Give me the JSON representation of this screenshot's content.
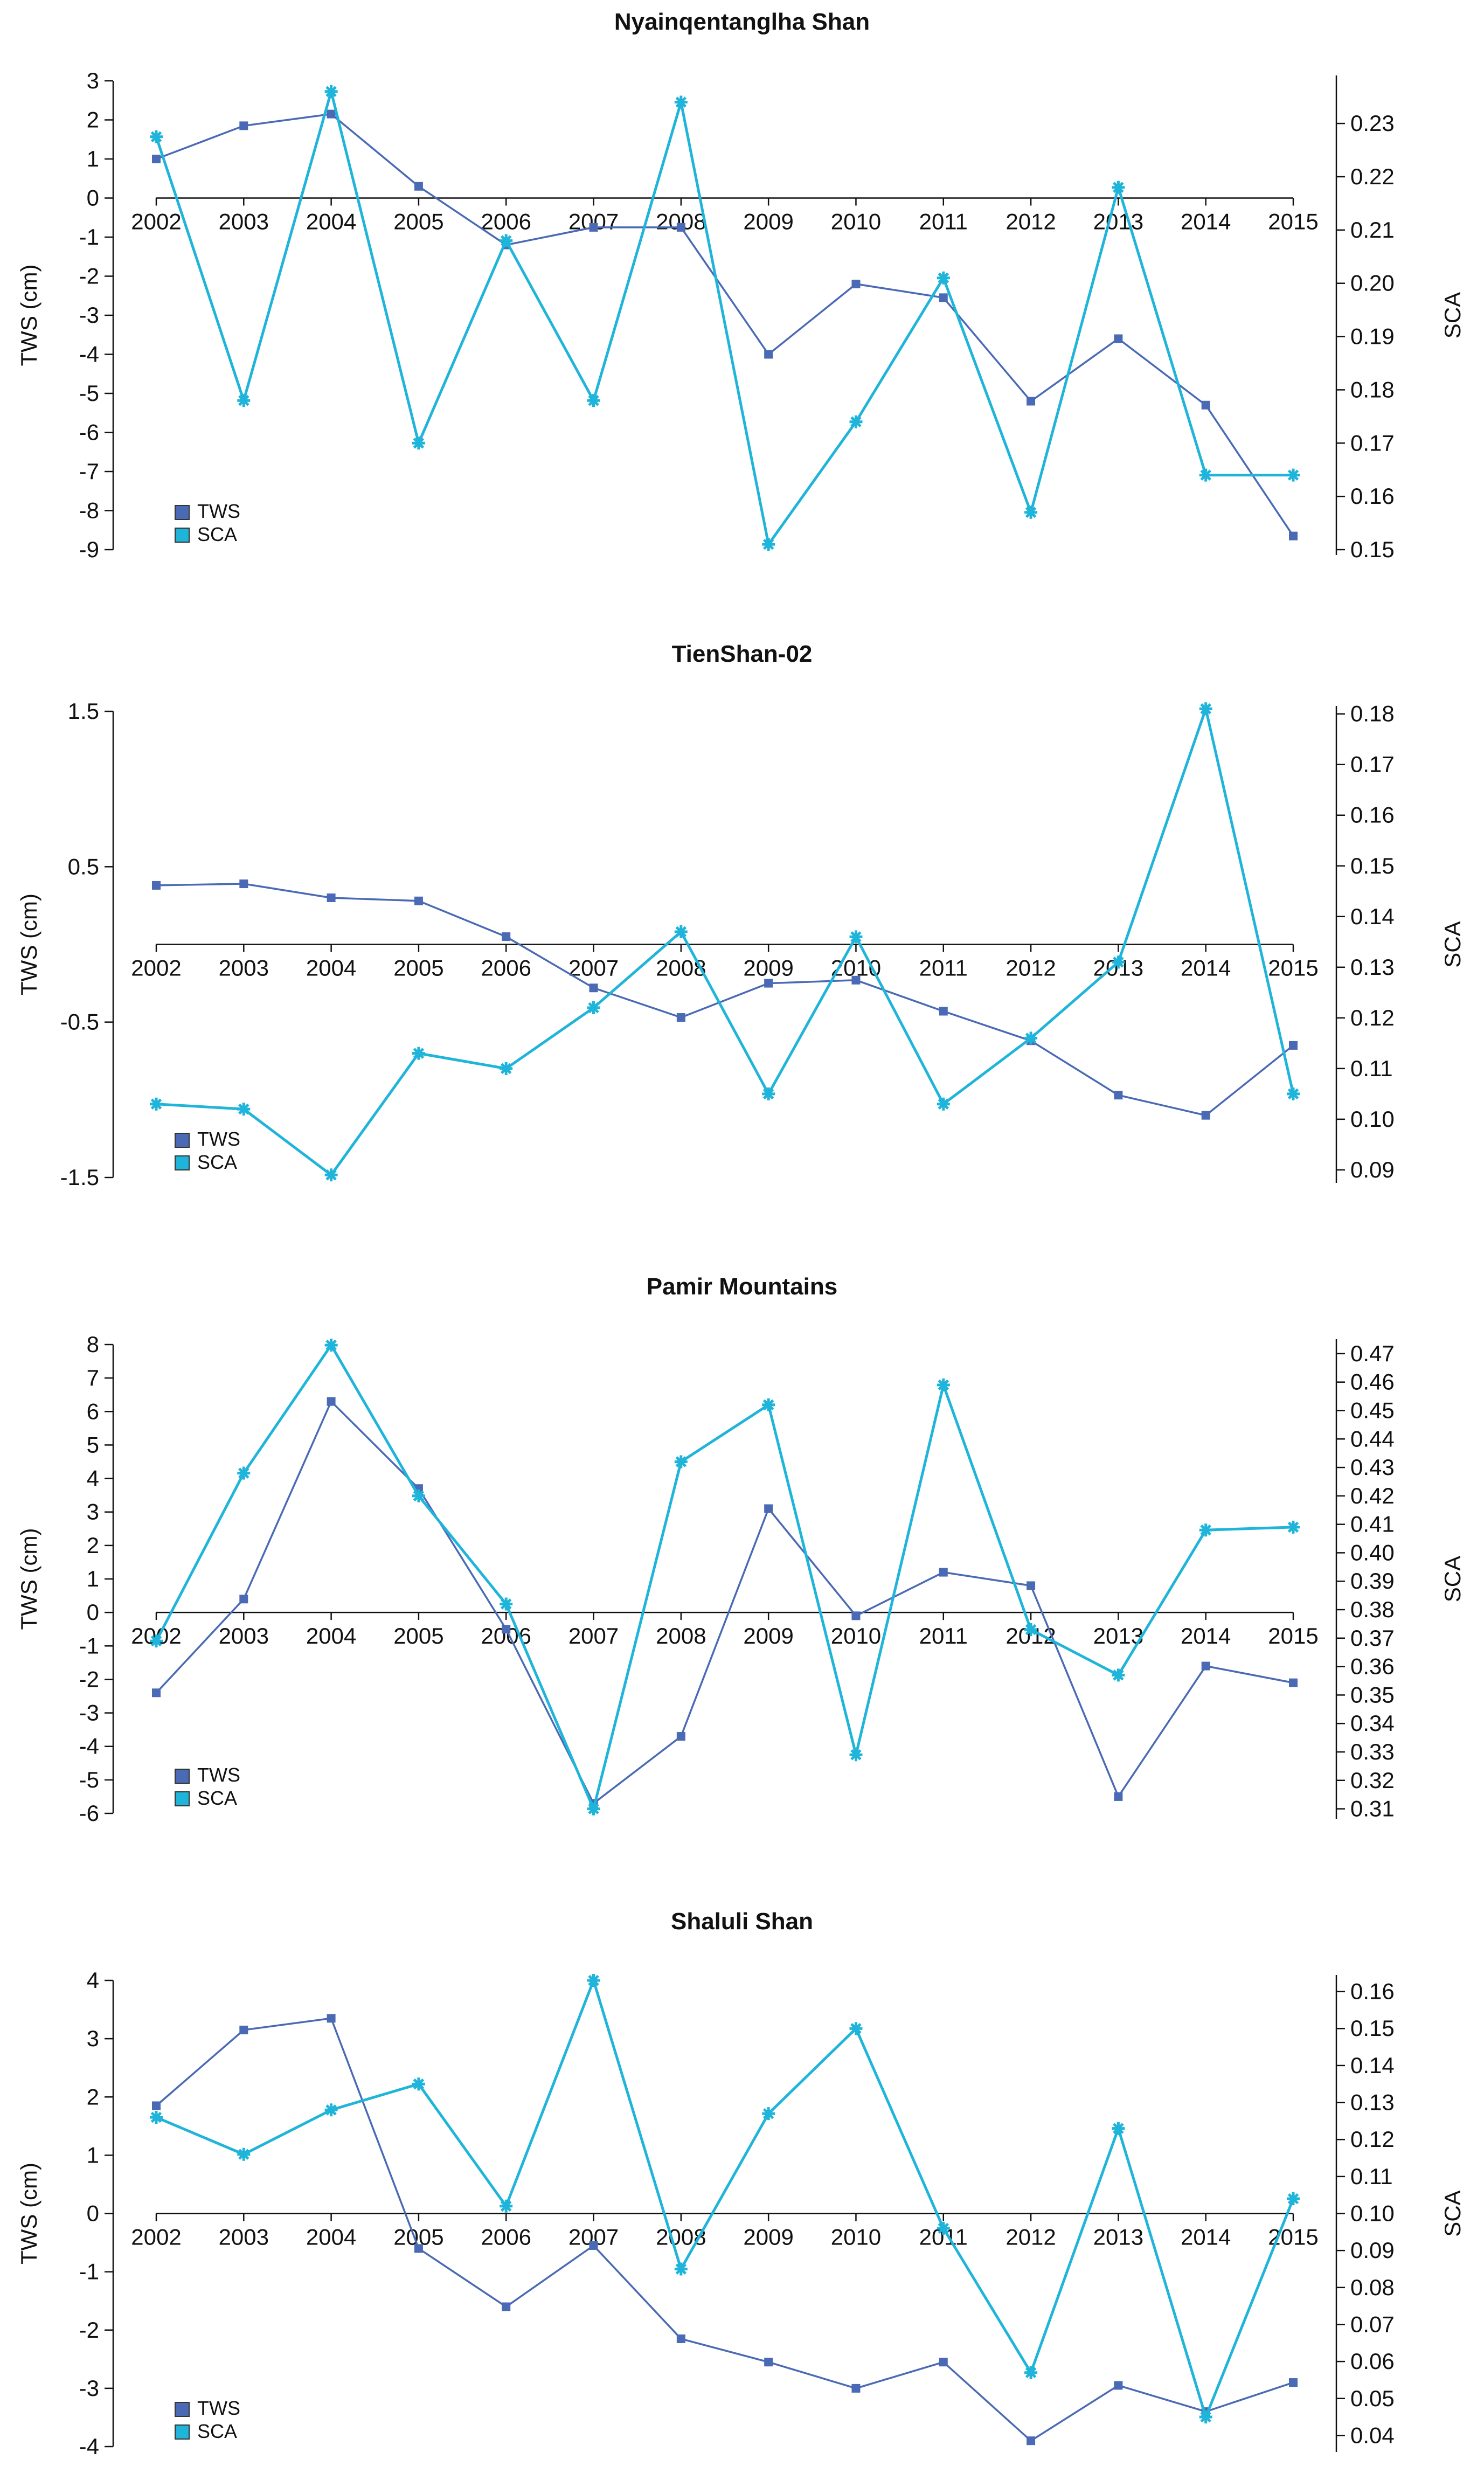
{
  "colors": {
    "tws": "#4a6ab5",
    "sca": "#1fb4d9",
    "axis": "#111111"
  },
  "legend": {
    "tws_label": "TWS",
    "sca_label": "SCA"
  },
  "chart_data": [
    {
      "type": "line",
      "title": "Nyainqentanglha Shan",
      "xlabel": "",
      "ylabel": "TWS (cm)",
      "y2label": "SCA",
      "categories": [
        "2002",
        "2003",
        "2004",
        "2005",
        "2006",
        "2007",
        "2008",
        "2009",
        "2010",
        "2011",
        "2012",
        "2013",
        "2014",
        "2015"
      ],
      "ylim": [
        -9,
        3
      ],
      "yticks": [
        "-9",
        "-8",
        "-7",
        "-6",
        "-5",
        "-4",
        "-3",
        "-2",
        "-1",
        "0",
        "1",
        "2",
        "3"
      ],
      "y2lim": [
        0.15,
        0.238
      ],
      "y2ticks": [
        "0.15",
        "0.16",
        "0.17",
        "0.18",
        "0.19",
        "0.20",
        "0.21",
        "0.22",
        "0.23"
      ],
      "series": [
        {
          "name": "TWS",
          "axis": "left",
          "marker": "square",
          "values": [
            1.0,
            1.85,
            2.15,
            0.3,
            -1.2,
            -0.75,
            -0.75,
            -4.0,
            -2.2,
            -2.55,
            -5.2,
            -3.6,
            -5.3,
            -8.65
          ]
        },
        {
          "name": "SCA",
          "axis": "right",
          "marker": "star",
          "values": [
            0.2275,
            0.178,
            0.236,
            0.17,
            0.208,
            0.178,
            0.234,
            0.151,
            0.174,
            0.201,
            0.157,
            0.218,
            0.164,
            0.164
          ]
        }
      ]
    },
    {
      "type": "line",
      "title": "TienShan-02",
      "xlabel": "",
      "ylabel": "TWS (cm)",
      "y2label": "SCA",
      "categories": [
        "2002",
        "2003",
        "2004",
        "2005",
        "2006",
        "2007",
        "2008",
        "2009",
        "2010",
        "2011",
        "2012",
        "2013",
        "2014",
        "2015"
      ],
      "ylim": [
        -1.5,
        1.5
      ],
      "yticks": [
        "-1.5",
        "-0.5",
        "0.5",
        "1.5"
      ],
      "y2lim": [
        0.0885,
        0.1805
      ],
      "y2ticks": [
        "0.09",
        "0.10",
        "0.11",
        "0.12",
        "0.13",
        "0.14",
        "0.15",
        "0.16",
        "0.17",
        "0.18"
      ],
      "series": [
        {
          "name": "TWS",
          "axis": "left",
          "marker": "square",
          "values": [
            0.38,
            0.39,
            0.3,
            0.28,
            0.05,
            -0.28,
            -0.47,
            -0.25,
            -0.23,
            -0.43,
            -0.62,
            -0.97,
            -1.1,
            -0.65
          ]
        },
        {
          "name": "SCA",
          "axis": "right",
          "marker": "star",
          "values": [
            0.103,
            0.102,
            0.089,
            0.113,
            0.11,
            0.122,
            0.137,
            0.105,
            0.136,
            0.103,
            0.116,
            0.131,
            0.181,
            0.105
          ]
        }
      ]
    },
    {
      "type": "line",
      "title": "Pamir Mountains",
      "xlabel": "",
      "ylabel": "TWS (cm)",
      "y2label": "SCA",
      "categories": [
        "2002",
        "2003",
        "2004",
        "2005",
        "2006",
        "2007",
        "2008",
        "2009",
        "2010",
        "2011",
        "2012",
        "2013",
        "2014",
        "2015"
      ],
      "ylim": [
        -6,
        8
      ],
      "yticks": [
        "-6",
        "-5",
        "-4",
        "-3",
        "-2",
        "-1",
        "0",
        "1",
        "2",
        "3",
        "4",
        "5",
        "6",
        "7",
        "8"
      ],
      "y2lim": [
        0.3084,
        0.4732
      ],
      "y2ticks": [
        "0.31",
        "0.32",
        "0.33",
        "0.34",
        "0.35",
        "0.36",
        "0.37",
        "0.38",
        "0.39",
        "0.40",
        "0.41",
        "0.42",
        "0.43",
        "0.44",
        "0.45",
        "0.46",
        "0.47"
      ],
      "series": [
        {
          "name": "TWS",
          "axis": "left",
          "marker": "square",
          "values": [
            -2.4,
            0.4,
            6.3,
            3.7,
            -0.5,
            -5.7,
            -3.7,
            3.1,
            -0.1,
            1.2,
            0.8,
            -5.5,
            -1.6,
            -2.1
          ]
        },
        {
          "name": "SCA",
          "axis": "right",
          "marker": "star",
          "values": [
            0.369,
            0.428,
            0.473,
            0.42,
            0.382,
            0.31,
            0.432,
            0.452,
            0.329,
            0.459,
            0.373,
            0.357,
            0.408,
            0.409
          ]
        }
      ]
    },
    {
      "type": "line",
      "title": "Shaluli Shan",
      "xlabel": "",
      "ylabel": "TWS (cm)",
      "y2label": "SCA",
      "categories": [
        "2002",
        "2003",
        "2004",
        "2005",
        "2006",
        "2007",
        "2008",
        "2009",
        "2010",
        "2011",
        "2012",
        "2013",
        "2014",
        "2015"
      ],
      "ylim": [
        -4,
        4
      ],
      "yticks": [
        "-4",
        "-3",
        "-2",
        "-1",
        "0",
        "1",
        "2",
        "3",
        "4"
      ],
      "y2lim": [
        0.037,
        0.163
      ],
      "y2ticks": [
        "0.04",
        "0.05",
        "0.06",
        "0.07",
        "0.08",
        "0.09",
        "0.10",
        "0.11",
        "0.12",
        "0.13",
        "0.14",
        "0.15",
        "0.16"
      ],
      "series": [
        {
          "name": "TWS",
          "axis": "left",
          "marker": "square",
          "values": [
            1.85,
            3.15,
            3.35,
            -0.6,
            -1.6,
            -0.55,
            -2.15,
            -2.55,
            -3.0,
            -2.55,
            -3.9,
            -2.95,
            -3.4,
            -2.9
          ]
        },
        {
          "name": "SCA",
          "axis": "right",
          "marker": "star",
          "values": [
            0.126,
            0.116,
            0.128,
            0.135,
            0.102,
            0.163,
            0.085,
            0.127,
            0.15,
            0.096,
            0.057,
            0.123,
            0.045,
            0.104
          ]
        }
      ]
    }
  ]
}
